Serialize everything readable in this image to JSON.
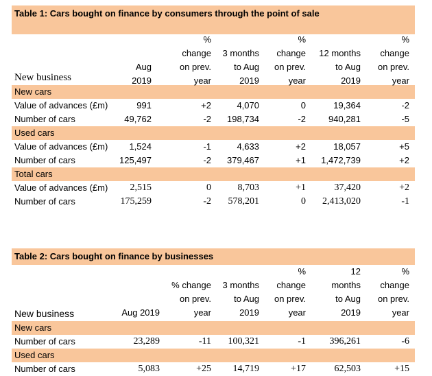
{
  "table1": {
    "title": "Table 1: Cars bought on finance by consumers through the point of sale",
    "headers": {
      "label": "New business",
      "c1": [
        "",
        "",
        "Aug",
        "2019"
      ],
      "c2": [
        "%",
        "change",
        "on prev.",
        "year"
      ],
      "c3": [
        "",
        "3 months",
        "to Aug",
        "2019"
      ],
      "c4": [
        "%",
        "change",
        "on prev.",
        "year"
      ],
      "c5": [
        "",
        "12 months",
        "to Aug",
        "2019"
      ],
      "c6": [
        "%",
        "change",
        "on prev.",
        "year"
      ]
    },
    "sections": [
      {
        "name": "New cars",
        "rows": [
          {
            "label": "Value of advances (£m)",
            "values": [
              "991",
              "+2",
              "4,070",
              "0",
              "19,364",
              "-2"
            ]
          },
          {
            "label": "Number of cars",
            "values": [
              "49,762",
              "-2",
              "198,734",
              "-2",
              "940,281",
              "-5"
            ]
          }
        ]
      },
      {
        "name": "Used cars",
        "rows": [
          {
            "label": "Value of advances (£m)",
            "values": [
              "1,524",
              "-1",
              "4,633",
              "+2",
              "18,057",
              "+5"
            ]
          },
          {
            "label": "Number of cars",
            "values": [
              "125,497",
              "-2",
              "379,467",
              "+1",
              "1,472,739",
              "+2"
            ]
          }
        ]
      },
      {
        "name": "Total cars",
        "rows": [
          {
            "label": "Value of advances (£m)",
            "values": [
              "2,515",
              "0",
              "8,703",
              "+1",
              "37,420",
              "+2"
            ]
          },
          {
            "label": "Number of cars",
            "values": [
              "175,259",
              "-2",
              "578,201",
              "0",
              "2,413,020",
              "-1"
            ]
          }
        ]
      }
    ]
  },
  "table2": {
    "title": "Table 2: Cars bought on finance by businesses",
    "headers": {
      "label": "New business",
      "c1": [
        "",
        "",
        "",
        "Aug 2019"
      ],
      "c2": [
        "",
        "% change",
        "on prev.",
        "year"
      ],
      "c3": [
        "",
        "3 months",
        "to Aug",
        "2019"
      ],
      "c4": [
        "%",
        "change",
        "on prev.",
        "year"
      ],
      "c5": [
        "12",
        "months",
        "to Aug",
        "2019"
      ],
      "c6": [
        "%",
        "change",
        "on prev.",
        "year"
      ]
    },
    "sections": [
      {
        "name": "New cars",
        "rows": [
          {
            "label": "Number of cars",
            "values": [
              "23,289",
              "-11",
              "100,321",
              "-1",
              "396,261",
              "-6"
            ]
          }
        ]
      },
      {
        "name": "Used cars",
        "rows": [
          {
            "label": "Number of cars",
            "values": [
              "5,083",
              "+25",
              "14,719",
              "+17",
              "62,503",
              "+15"
            ]
          }
        ]
      }
    ]
  }
}
